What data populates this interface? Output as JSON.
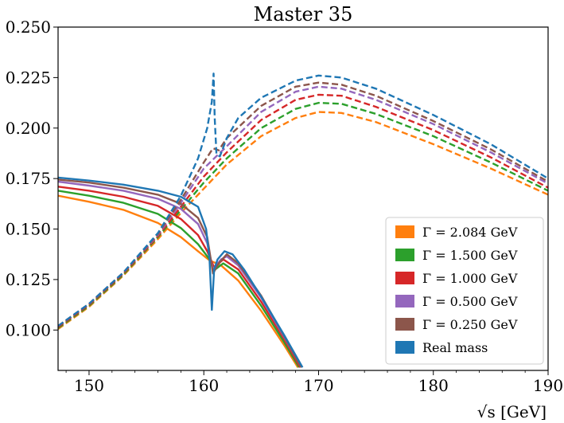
{
  "chart_data": {
    "type": "line",
    "title": "Master 35",
    "xlabel": "√s [GeV]",
    "ylabel": "",
    "xlim": [
      147.3,
      190
    ],
    "ylim": [
      0.08,
      0.25
    ],
    "xticks": [
      150,
      160,
      170,
      180,
      190
    ],
    "xtick_labels": [
      "150",
      "160",
      "170",
      "180",
      "190"
    ],
    "yticks": [
      0.1,
      0.125,
      0.15,
      0.175,
      0.2,
      0.225,
      0.25
    ],
    "ytick_labels": [
      "0.100",
      "0.125",
      "0.150",
      "0.175",
      "0.200",
      "0.225",
      "0.250"
    ],
    "grid": false,
    "legend_position": "lower-right",
    "series": [
      {
        "name": "Γ = 2.084 GeV",
        "color": "#ff7f0e",
        "solid": [
          [
            147.3,
            0.1665
          ],
          [
            150,
            0.1635
          ],
          [
            153,
            0.1595
          ],
          [
            156,
            0.153
          ],
          [
            158,
            0.146
          ],
          [
            159.5,
            0.139
          ],
          [
            160.5,
            0.1345
          ],
          [
            161.5,
            0.132
          ],
          [
            163,
            0.1245
          ],
          [
            165,
            0.1095
          ],
          [
            167,
            0.0925
          ],
          [
            168.2,
            0.0815
          ]
        ],
        "dashed": [
          [
            147.3,
            0.1005
          ],
          [
            150,
            0.1115
          ],
          [
            153,
            0.127
          ],
          [
            156,
            0.145
          ],
          [
            158,
            0.158
          ],
          [
            160,
            0.17
          ],
          [
            162,
            0.182
          ],
          [
            165,
            0.196
          ],
          [
            168,
            0.205
          ],
          [
            170,
            0.208
          ],
          [
            172,
            0.2075
          ],
          [
            175,
            0.203
          ],
          [
            180,
            0.192
          ],
          [
            185,
            0.18
          ],
          [
            190,
            0.167
          ]
        ]
      },
      {
        "name": "Γ = 1.500 GeV",
        "color": "#2ca02c",
        "solid": [
          [
            147.3,
            0.169
          ],
          [
            150,
            0.1665
          ],
          [
            153,
            0.163
          ],
          [
            156,
            0.1575
          ],
          [
            158,
            0.1505
          ],
          [
            159.5,
            0.1425
          ],
          [
            160.5,
            0.135
          ],
          [
            161,
            0.13
          ],
          [
            161.7,
            0.133
          ],
          [
            163,
            0.128
          ],
          [
            165,
            0.112
          ],
          [
            167,
            0.094
          ],
          [
            168.3,
            0.0815
          ]
        ],
        "dashed": [
          [
            147.3,
            0.101
          ],
          [
            150,
            0.112
          ],
          [
            153,
            0.1275
          ],
          [
            156,
            0.146
          ],
          [
            158,
            0.1595
          ],
          [
            160,
            0.173
          ],
          [
            162,
            0.185
          ],
          [
            165,
            0.2
          ],
          [
            168,
            0.2095
          ],
          [
            170,
            0.2125
          ],
          [
            172,
            0.212
          ],
          [
            175,
            0.207
          ],
          [
            180,
            0.196
          ],
          [
            185,
            0.183
          ],
          [
            190,
            0.169
          ]
        ]
      },
      {
        "name": "Γ = 1.000 GeV",
        "color": "#d62728",
        "solid": [
          [
            147.3,
            0.171
          ],
          [
            150,
            0.169
          ],
          [
            153,
            0.166
          ],
          [
            156,
            0.1615
          ],
          [
            158,
            0.155
          ],
          [
            159.5,
            0.147
          ],
          [
            160.3,
            0.139
          ],
          [
            160.9,
            0.131
          ],
          [
            161.7,
            0.135
          ],
          [
            163,
            0.13
          ],
          [
            165,
            0.114
          ],
          [
            167,
            0.0955
          ],
          [
            168.4,
            0.0815
          ]
        ],
        "dashed": [
          [
            147.3,
            0.1015
          ],
          [
            150,
            0.1125
          ],
          [
            153,
            0.128
          ],
          [
            156,
            0.1465
          ],
          [
            158,
            0.161
          ],
          [
            160,
            0.176
          ],
          [
            161,
            0.182
          ],
          [
            162,
            0.188
          ],
          [
            165,
            0.204
          ],
          [
            168,
            0.214
          ],
          [
            170,
            0.2165
          ],
          [
            172,
            0.216
          ],
          [
            175,
            0.2105
          ],
          [
            180,
            0.199
          ],
          [
            185,
            0.1855
          ],
          [
            190,
            0.1705
          ]
        ]
      },
      {
        "name": "Γ = 0.500 GeV",
        "color": "#9467bd",
        "solid": [
          [
            147.3,
            0.1735
          ],
          [
            150,
            0.1715
          ],
          [
            153,
            0.169
          ],
          [
            156,
            0.165
          ],
          [
            158,
            0.16
          ],
          [
            159.5,
            0.1525
          ],
          [
            160.3,
            0.143
          ],
          [
            160.8,
            0.13
          ],
          [
            161.5,
            0.135
          ],
          [
            162,
            0.1365
          ],
          [
            163,
            0.132
          ],
          [
            165,
            0.116
          ],
          [
            167,
            0.0965
          ],
          [
            168.5,
            0.0815
          ]
        ],
        "dashed": [
          [
            147.3,
            0.102
          ],
          [
            150,
            0.113
          ],
          [
            153,
            0.1285
          ],
          [
            156,
            0.147
          ],
          [
            158,
            0.163
          ],
          [
            160,
            0.18
          ],
          [
            161,
            0.1855
          ],
          [
            162,
            0.191
          ],
          [
            165,
            0.208
          ],
          [
            168,
            0.218
          ],
          [
            170,
            0.2205
          ],
          [
            172,
            0.2195
          ],
          [
            175,
            0.214
          ],
          [
            180,
            0.202
          ],
          [
            185,
            0.188
          ],
          [
            190,
            0.1725
          ]
        ]
      },
      {
        "name": "Γ = 0.250 GeV",
        "color": "#8c564b",
        "solid": [
          [
            147.3,
            0.1745
          ],
          [
            150,
            0.173
          ],
          [
            153,
            0.1705
          ],
          [
            156,
            0.167
          ],
          [
            158,
            0.1625
          ],
          [
            159.5,
            0.1555
          ],
          [
            160.3,
            0.146
          ],
          [
            160.8,
            0.128
          ],
          [
            161.3,
            0.133
          ],
          [
            162,
            0.1375
          ],
          [
            163,
            0.133
          ],
          [
            165,
            0.117
          ],
          [
            167,
            0.097
          ],
          [
            168.5,
            0.0815
          ]
        ],
        "dashed": [
          [
            147.3,
            0.102
          ],
          [
            150,
            0.113
          ],
          [
            153,
            0.1285
          ],
          [
            156,
            0.1475
          ],
          [
            158,
            0.1645
          ],
          [
            160,
            0.183
          ],
          [
            160.8,
            0.19
          ],
          [
            161.3,
            0.189
          ],
          [
            162,
            0.195
          ],
          [
            165,
            0.211
          ],
          [
            168,
            0.2205
          ],
          [
            170,
            0.2225
          ],
          [
            172,
            0.2215
          ],
          [
            175,
            0.216
          ],
          [
            180,
            0.2035
          ],
          [
            185,
            0.1895
          ],
          [
            190,
            0.1735
          ]
        ]
      },
      {
        "name": "Real mass",
        "color": "#1f77b4",
        "solid": [
          [
            147.3,
            0.1755
          ],
          [
            150,
            0.174
          ],
          [
            153,
            0.172
          ],
          [
            156,
            0.169
          ],
          [
            158,
            0.166
          ],
          [
            159.5,
            0.161
          ],
          [
            160.2,
            0.15
          ],
          [
            160.5,
            0.135
          ],
          [
            160.7,
            0.11
          ],
          [
            160.9,
            0.13
          ],
          [
            161.2,
            0.135
          ],
          [
            161.8,
            0.139
          ],
          [
            162.5,
            0.1375
          ],
          [
            163.5,
            0.13
          ],
          [
            165,
            0.1165
          ],
          [
            167,
            0.0975
          ],
          [
            168.6,
            0.0815
          ]
        ],
        "dashed": [
          [
            147.3,
            0.102
          ],
          [
            150,
            0.113
          ],
          [
            153,
            0.1285
          ],
          [
            156,
            0.148
          ],
          [
            158,
            0.1665
          ],
          [
            159.5,
            0.185
          ],
          [
            160.3,
            0.2
          ],
          [
            160.7,
            0.213
          ],
          [
            160.85,
            0.227
          ],
          [
            160.95,
            0.205
          ],
          [
            161.1,
            0.187
          ],
          [
            161.4,
            0.186
          ],
          [
            162,
            0.195
          ],
          [
            163,
            0.205
          ],
          [
            165,
            0.215
          ],
          [
            168,
            0.2235
          ],
          [
            170,
            0.226
          ],
          [
            172,
            0.225
          ],
          [
            175,
            0.2195
          ],
          [
            180,
            0.2065
          ],
          [
            185,
            0.192
          ],
          [
            190,
            0.175
          ]
        ]
      }
    ]
  }
}
